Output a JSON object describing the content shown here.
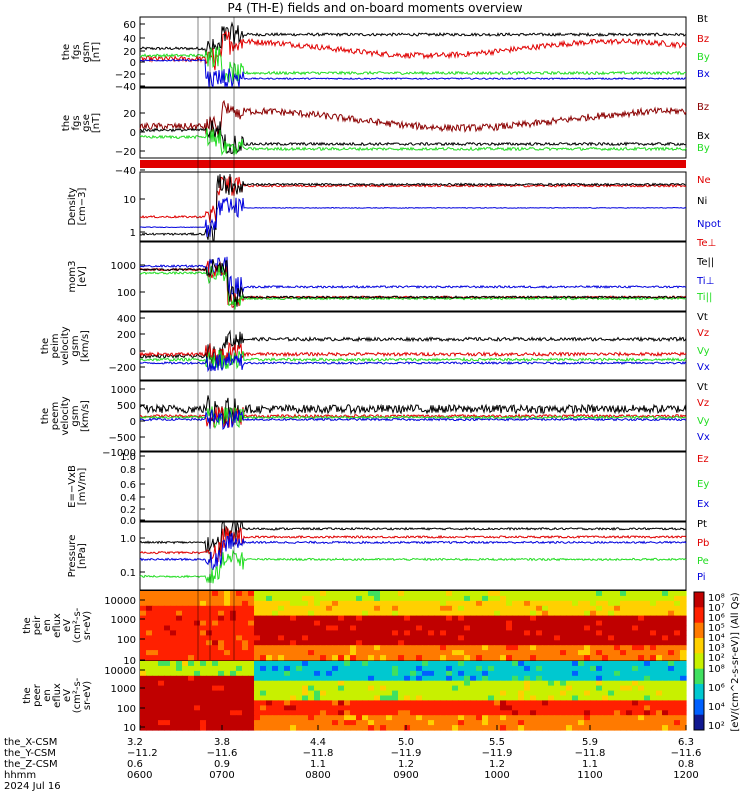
{
  "title": "P4 (TH-E) fields and on-board moments overview",
  "colors": {
    "black": "#000000",
    "red": "#e00000",
    "green": "#22dd22",
    "blue": "#0000dd",
    "darkred": "#8b0000"
  },
  "chart_data": [
    {
      "type": "line",
      "panel": "fgs-gsm",
      "ylabel": [
        "the",
        "fgs",
        "gsm",
        "[nT]"
      ],
      "yticks": [
        "60",
        "40",
        "20",
        "0",
        "−20",
        "−40"
      ],
      "ylim": [
        -45,
        70
      ],
      "legend": [
        {
          "name": "Bt",
          "color": "#000000"
        },
        {
          "name": "Bz",
          "color": "#e00000"
        },
        {
          "name": "By",
          "color": "#22dd22"
        },
        {
          "name": "Bx",
          "color": "#0000dd"
        }
      ]
    },
    {
      "type": "line",
      "panel": "fgs-gse",
      "ylabel": [
        "the",
        "fgs",
        "gse",
        "[nT]"
      ],
      "yticks": [
        "20",
        "0",
        "−20",
        "−40"
      ],
      "ylim": [
        -55,
        40
      ],
      "legend": [
        {
          "name": "Bz",
          "color": "#8b0000"
        },
        {
          "name": "Bx",
          "color": "#000000"
        },
        {
          "name": "By",
          "color": "#22dd22"
        }
      ]
    },
    {
      "type": "line",
      "panel": "density",
      "ylabel": [
        "Density",
        "[cm−3]"
      ],
      "yticks": [
        "10",
        "1"
      ],
      "scale": "log",
      "legend": [
        {
          "name": "Ne",
          "color": "#e00000"
        },
        {
          "name": "Ni",
          "color": "#000000"
        },
        {
          "name": "Npot",
          "color": "#0000dd"
        }
      ]
    },
    {
      "type": "line",
      "panel": "temperature",
      "ylabel": [
        "mom3",
        "[eV]"
      ],
      "yticks": [
        "1000",
        "100"
      ],
      "scale": "log",
      "legend": [
        {
          "name": "Te⊥",
          "color": "#e00000"
        },
        {
          "name": "Te||",
          "color": "#000000"
        },
        {
          "name": "Ti⊥",
          "color": "#0000dd"
        },
        {
          "name": "Ti||",
          "color": "#22dd22"
        }
      ]
    },
    {
      "type": "line",
      "panel": "peim-velocity",
      "ylabel": [
        "the",
        "peim",
        "velocity",
        "gsm",
        "[km/s]"
      ],
      "yticks": [
        "400",
        "200",
        "0",
        "−200"
      ],
      "ylim": [
        -270,
        450
      ],
      "legend": [
        {
          "name": "Vt",
          "color": "#000000"
        },
        {
          "name": "Vz",
          "color": "#e00000"
        },
        {
          "name": "Vy",
          "color": "#22dd22"
        },
        {
          "name": "Vx",
          "color": "#0000dd"
        }
      ]
    },
    {
      "type": "line",
      "panel": "peem-velocity",
      "ylabel": [
        "the",
        "peem",
        "velocity",
        "gsm",
        "[km/s]"
      ],
      "yticks": [
        "1000",
        "500",
        "0",
        "−500",
        "−1000"
      ],
      "ylim": [
        -1050,
        1150
      ],
      "legend": [
        {
          "name": "Vt",
          "color": "#000000"
        },
        {
          "name": "Vz",
          "color": "#e00000"
        },
        {
          "name": "Vy",
          "color": "#22dd22"
        },
        {
          "name": "Vx",
          "color": "#0000dd"
        }
      ]
    },
    {
      "type": "line",
      "panel": "efield",
      "ylabel": [
        "E=−VxB",
        "[mV/m]"
      ],
      "yticks": [
        "1.0",
        "0.8",
        "0.6",
        "0.4",
        "0.2",
        "0.0"
      ],
      "ylim": [
        -0.05,
        1.05
      ],
      "legend": [
        {
          "name": "Ez",
          "color": "#e00000"
        },
        {
          "name": "Ey",
          "color": "#22dd22"
        },
        {
          "name": "Ex",
          "color": "#0000dd"
        }
      ]
    },
    {
      "type": "line",
      "panel": "pressure",
      "ylabel": [
        "Pressure",
        "[nPa]"
      ],
      "yticks": [
        "1.0",
        "0.1"
      ],
      "scale": "log",
      "legend": [
        {
          "name": "Pt",
          "color": "#000000"
        },
        {
          "name": "Pb",
          "color": "#e00000"
        },
        {
          "name": "Pe",
          "color": "#22dd22"
        },
        {
          "name": "Pi",
          "color": "#0000dd"
        }
      ]
    },
    {
      "type": "heatmap",
      "panel": "peir-spectrogram",
      "ylabel": [
        "the",
        "peir",
        "en",
        "eflux",
        "eV",
        "(cm²-s-",
        "sr-eV)"
      ],
      "yticks": [
        "10000",
        "1000",
        "100",
        "10"
      ],
      "scale": "log"
    },
    {
      "type": "heatmap",
      "panel": "peer-spectrogram",
      "ylabel": [
        "the",
        "peer",
        "en",
        "eflux",
        "eV",
        "(cm²-s-",
        "sr-eV)"
      ],
      "yticks": [
        "10000",
        "1000",
        "100",
        "10"
      ],
      "scale": "log"
    }
  ],
  "colorbar": {
    "ticks_top": [
      "10⁸",
      "10⁷",
      "10⁶",
      "10⁵",
      "10⁴",
      "10³",
      "10²"
    ],
    "ticks_bottom": [
      "10⁸",
      "10⁶",
      "10⁴",
      "10²"
    ],
    "label": "[eV/(cm^2-s-sr-eV)] (All Qs)"
  },
  "xaxis": {
    "rows": [
      {
        "label": "the_X-CSM",
        "values": [
          "3.2",
          "3.8",
          "4.4",
          "5.0",
          "5.5",
          "5.9",
          "6.3"
        ]
      },
      {
        "label": "the_Y-CSM",
        "values": [
          "−11.2",
          "−11.6",
          "−11.8",
          "−11.9",
          "−11.9",
          "−11.8",
          "−11.6"
        ]
      },
      {
        "label": "the_Z-CSM",
        "values": [
          "0.6",
          "0.9",
          "1.1",
          "1.2",
          "1.2",
          "1.1",
          "0.8"
        ]
      },
      {
        "label": "hhmm",
        "values": [
          "0600",
          "0700",
          "0800",
          "0900",
          "1000",
          "1100",
          "1200"
        ]
      }
    ],
    "date": "2024 Jul 16"
  }
}
